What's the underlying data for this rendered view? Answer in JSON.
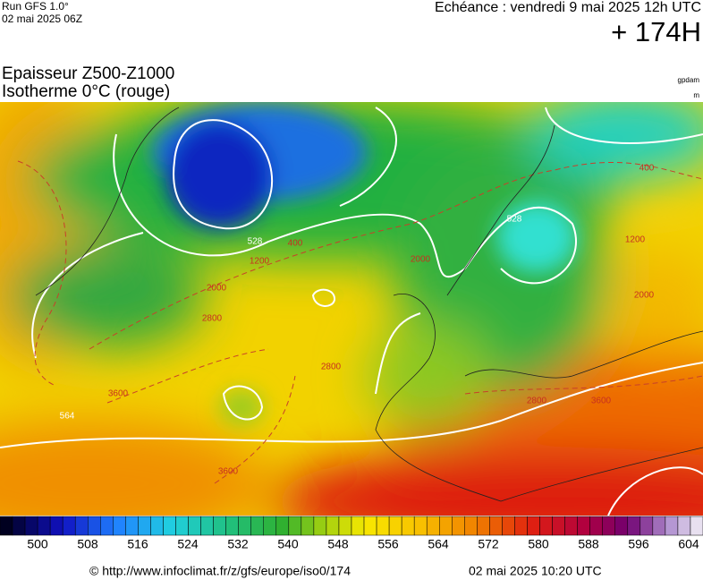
{
  "header": {
    "run": "Run GFS 1.0°",
    "run_date": "02 mai 2025 06Z",
    "valid": "Echéance : vendredi 9 mai 2025 12h UTC",
    "lead": "+ 174H",
    "title": "Epaisseur Z500-Z1000",
    "subtitle": "Isotherme 0°C (rouge)",
    "unit_thickness": "gpdam",
    "unit_iso": "m"
  },
  "map": {
    "contour_labels": [
      "528",
      "528",
      "564",
      "3600",
      "3600",
      "3600",
      "2800",
      "2800",
      "2800",
      "400",
      "400",
      "1200",
      "1200",
      "2000",
      "2000",
      "2000"
    ]
  },
  "colorbar": {
    "labels": [
      "500",
      "508",
      "516",
      "524",
      "532",
      "540",
      "548",
      "556",
      "564",
      "572",
      "580",
      "588",
      "596",
      "604"
    ]
  },
  "footer": {
    "url": "© http://www.infoclimat.fr/z/gfs/europe/iso0/174",
    "date": "02 mai 2025 10:20 UTC"
  }
}
